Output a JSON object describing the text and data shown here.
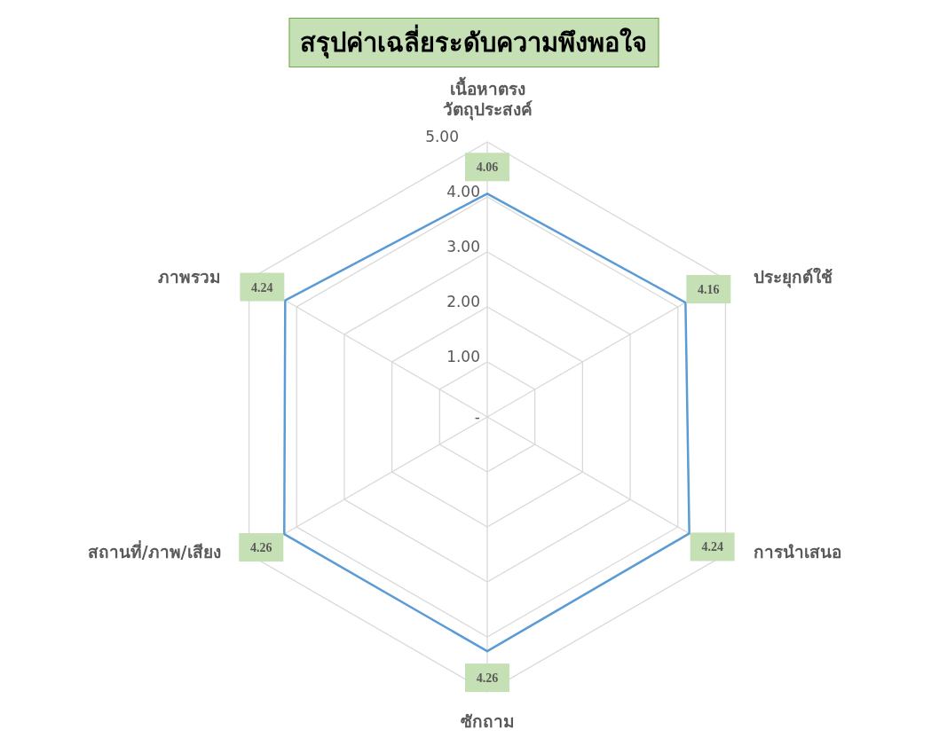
{
  "chart_data": {
    "type": "radar",
    "title": "สรุปค่าเฉลี่ยระดับความพึงพอใจ",
    "categories": [
      "เนื้อหาตรงวัตถุประสงค์",
      "ประยุกต์ใช้",
      "การนำเสนอ",
      "ซักถาม",
      "สถานที่/ภาพ/เสียง",
      "ภาพรวม"
    ],
    "series": [
      {
        "color": "#5b9bd5",
        "values": [
          4.06,
          4.16,
          4.24,
          4.26,
          4.26,
          4.24
        ]
      }
    ],
    "ylim": [
      0,
      5
    ],
    "yticks": [
      {
        "value": 0,
        "label": "-"
      },
      {
        "value": 1,
        "label": "1.00"
      },
      {
        "value": 2,
        "label": "2.00"
      },
      {
        "value": 3,
        "label": "3.00"
      },
      {
        "value": 4,
        "label": "4.00"
      },
      {
        "value": 5,
        "label": "5.00"
      }
    ],
    "grid": true,
    "data_labels": true,
    "marker": "none",
    "line_style": "solid"
  }
}
